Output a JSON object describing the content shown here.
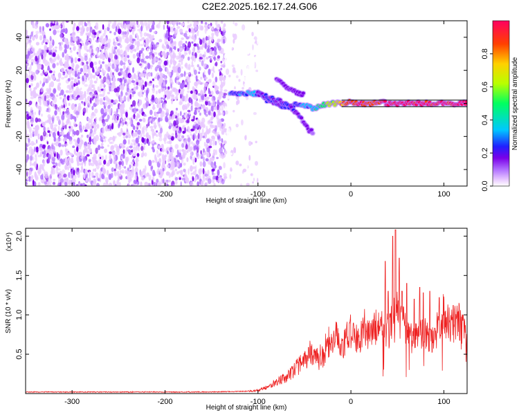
{
  "title": "C2E2.2025.162.17.24.G06",
  "chart_data": [
    {
      "type": "heatmap",
      "xlabel": "Height of straight line (km)",
      "ylabel": "Frequency (Hz)",
      "xlim": [
        -350,
        125
      ],
      "ylim": [
        -50,
        50
      ],
      "xticks": [
        -300,
        -200,
        -100,
        0,
        100
      ],
      "yticks": [
        -40,
        -20,
        0,
        20,
        40
      ],
      "colorbar": {
        "label": "Normalized spectral amplitude",
        "range": [
          0,
          1
        ],
        "ticks": [
          0.0,
          0.2,
          0.4,
          0.6,
          0.8
        ],
        "tick_labels": [
          "0.0",
          "0.2",
          "0.4",
          "0.6",
          "0.8"
        ],
        "colors": [
          "#ffffff",
          "#e8c8ff",
          "#b070ff",
          "#7a00e8",
          "#2020ff",
          "#00c8ff",
          "#00ff60",
          "#b8ff00",
          "#ffd000",
          "#ff4000",
          "#ff0060"
        ]
      },
      "regions": [
        {
          "x_range": [
            -350,
            -135
          ],
          "y_range": [
            -50,
            50
          ],
          "amplitude": [
            0.05,
            0.3
          ],
          "pattern": "scattered noise"
        },
        {
          "x_range": [
            -135,
            -100
          ],
          "y_range": [
            -50,
            50
          ],
          "amplitude": [
            0.02,
            0.1
          ],
          "pattern": "sparse noise"
        }
      ],
      "signal_tracks": [
        {
          "x": [
            -130,
            -120,
            -110,
            -100,
            -90,
            -80,
            -70,
            -60,
            -50,
            -40,
            -30,
            -20,
            -10,
            0,
            10,
            20,
            30,
            40,
            50,
            60,
            70,
            80,
            90,
            100,
            110,
            125
          ],
          "y": [
            6,
            6,
            6,
            6,
            2,
            -1,
            -2,
            -1,
            -1,
            -3,
            -1,
            0,
            0,
            1,
            0,
            0,
            1,
            0,
            0,
            0,
            0,
            0,
            0,
            0,
            0,
            0
          ],
          "amplitude": [
            0.4,
            0.45,
            0.5,
            0.5,
            0.35,
            0.35,
            0.4,
            0.4,
            0.45,
            0.5,
            0.6,
            0.7,
            0.8,
            0.9,
            0.95,
            0.9,
            0.95,
            1.0,
            1.0,
            1.0,
            1.0,
            1.0,
            1.0,
            1.0,
            1.0,
            1.0
          ]
        },
        {
          "x": [
            -100,
            -90,
            -80,
            -70,
            -60,
            -50,
            -45,
            -40
          ],
          "y": [
            6,
            4,
            2,
            0,
            -5,
            -12,
            -16,
            -18
          ],
          "amplitude": [
            0.3,
            0.35,
            0.35,
            0.35,
            0.3,
            0.3,
            0.3,
            0.25
          ]
        },
        {
          "x": [
            -80,
            -75,
            -70,
            -60,
            -50
          ],
          "y": [
            15,
            12,
            10,
            7,
            5
          ],
          "amplitude": [
            0.25,
            0.25,
            0.3,
            0.3,
            0.3
          ]
        }
      ],
      "reference_lines": [
        2,
        -2
      ]
    },
    {
      "type": "line",
      "xlabel": "Height of straight line (km)",
      "ylabel": "SNR (10 * v/v)",
      "y_scale_label": "(x10⁴)",
      "xlim": [
        -350,
        125
      ],
      "ylim": [
        0,
        2.1
      ],
      "xticks": [
        -300,
        -200,
        -100,
        0,
        100
      ],
      "yticks": [
        0.5,
        1.0,
        1.5,
        2.0
      ],
      "ytick_labels": [
        "0.5",
        "1.0",
        "1.5",
        "2.0"
      ],
      "series": [
        {
          "color": "#ee2222",
          "x": [
            -350,
            -300,
            -250,
            -200,
            -150,
            -110,
            -100,
            -90,
            -80,
            -70,
            -60,
            -55,
            -50,
            -45,
            -40,
            -35,
            -30,
            -25,
            -20,
            -15,
            -10,
            -5,
            0,
            5,
            10,
            15,
            20,
            25,
            30,
            35,
            40,
            45,
            50,
            55,
            60,
            65,
            70,
            75,
            80,
            85,
            90,
            95,
            100,
            105,
            110,
            115,
            120,
            125
          ],
          "y": [
            0.02,
            0.02,
            0.02,
            0.02,
            0.02,
            0.03,
            0.04,
            0.08,
            0.15,
            0.2,
            0.3,
            0.38,
            0.4,
            0.45,
            0.5,
            0.4,
            0.45,
            0.62,
            0.6,
            0.75,
            0.55,
            0.7,
            0.8,
            0.72,
            0.72,
            0.85,
            0.75,
            0.8,
            0.9,
            0.85,
            0.8,
            0.95,
            1.05,
            0.9,
            0.8,
            0.7,
            0.75,
            0.8,
            0.75,
            0.7,
            0.7,
            0.9,
            1.0,
            0.9,
            0.85,
            0.95,
            0.85,
            0.75
          ],
          "peaks": [
            {
              "x": 37,
              "y": 1.68
            },
            {
              "x": 40,
              "y": 1.3
            },
            {
              "x": 45,
              "y": 2.0
            },
            {
              "x": 48,
              "y": 2.08
            },
            {
              "x": 52,
              "y": 1.72
            },
            {
              "x": 55,
              "y": 1.3
            },
            {
              "x": 60,
              "y": 1.4
            },
            {
              "x": 68,
              "y": 1.2
            },
            {
              "x": 74,
              "y": 1.35
            },
            {
              "x": 78,
              "y": 1.28
            },
            {
              "x": 85,
              "y": 1.3
            },
            {
              "x": 95,
              "y": 1.22
            },
            {
              "x": 110,
              "y": 1.12
            },
            {
              "x": 120,
              "y": 1.0
            }
          ]
        }
      ]
    }
  ]
}
